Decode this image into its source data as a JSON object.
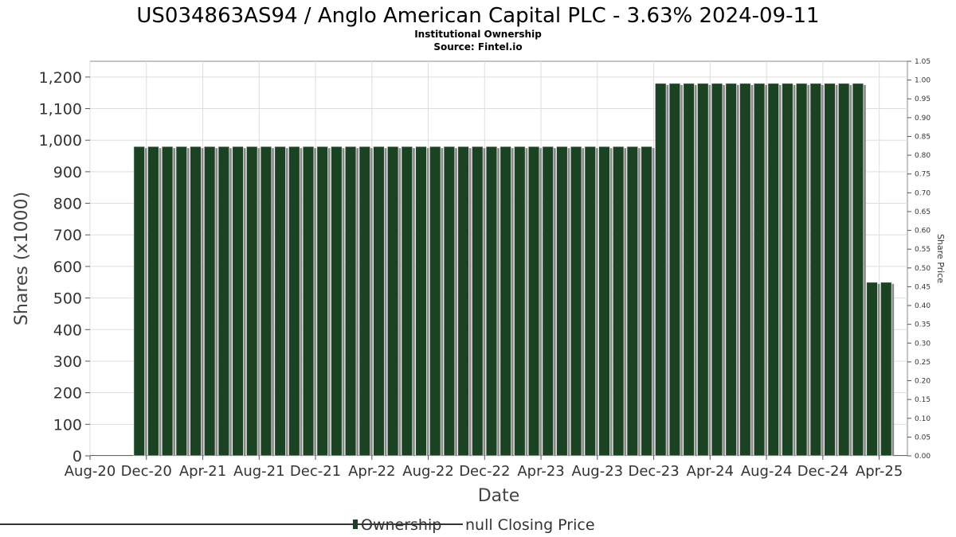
{
  "chart_data": {
    "type": "bar",
    "title": "US034863AS94 / Anglo American Capital PLC - 3.63% 2024-09-11",
    "subtitle": "Institutional Ownership",
    "source": "Source: Fintel.io",
    "xlabel": "Date",
    "ylabel": "Shares (x1000)",
    "y2label": "Share Price",
    "ylim": [
      0,
      1250
    ],
    "y2lim": [
      0,
      1.05
    ],
    "grid": true,
    "legend_position": "bottom-center",
    "colors": {
      "bar": "#1b4223",
      "bar_shadow": "#8a8a8a",
      "grid": "#dddddd",
      "plot_border": "#888888"
    },
    "yticks": [
      "0",
      "100",
      "200",
      "300",
      "400",
      "500",
      "600",
      "700",
      "800",
      "900",
      "1,000",
      "1,100",
      "1,200"
    ],
    "y2ticks": [
      "0.00",
      "0.05",
      "0.10",
      "0.15",
      "0.20",
      "0.25",
      "0.30",
      "0.35",
      "0.40",
      "0.45",
      "0.50",
      "0.55",
      "0.60",
      "0.65",
      "0.70",
      "0.75",
      "0.80",
      "0.85",
      "0.90",
      "0.95",
      "1.00",
      "1.05"
    ],
    "xticks": [
      "Aug-20",
      "Dec-20",
      "Apr-21",
      "Aug-21",
      "Dec-21",
      "Apr-22",
      "Aug-22",
      "Dec-22",
      "Apr-23",
      "Aug-23",
      "Dec-23",
      "Apr-24",
      "Aug-24",
      "Dec-24",
      "Apr-25"
    ],
    "xrange_months": [
      0,
      58
    ],
    "bar_width_months": 1.3,
    "series": [
      {
        "name": "Ownership",
        "months": [
          3,
          4,
          5,
          6,
          7,
          8,
          9,
          10,
          11,
          12,
          13,
          14,
          15,
          16,
          17,
          18,
          19,
          20,
          21,
          22,
          23,
          24,
          25,
          26,
          27,
          28,
          29,
          30,
          31,
          32,
          33,
          34,
          35,
          36,
          37,
          38,
          39,
          40,
          41,
          42,
          43,
          44,
          45,
          46,
          47,
          48,
          49,
          50,
          51,
          52,
          53,
          54,
          55,
          56
        ],
        "values": [
          980,
          980,
          980,
          980,
          980,
          980,
          980,
          980,
          980,
          980,
          980,
          980,
          980,
          980,
          980,
          980,
          980,
          980,
          980,
          980,
          980,
          980,
          980,
          980,
          980,
          980,
          980,
          980,
          980,
          980,
          980,
          980,
          980,
          980,
          980,
          980,
          980,
          1180,
          1180,
          1180,
          1180,
          1180,
          1180,
          1180,
          1180,
          1180,
          1180,
          1180,
          1180,
          1180,
          1180,
          1180,
          550,
          550
        ]
      }
    ],
    "legend": [
      {
        "label": "Ownership",
        "symbol": "bar"
      },
      {
        "label": "null Closing Price",
        "symbol": "line"
      }
    ]
  }
}
